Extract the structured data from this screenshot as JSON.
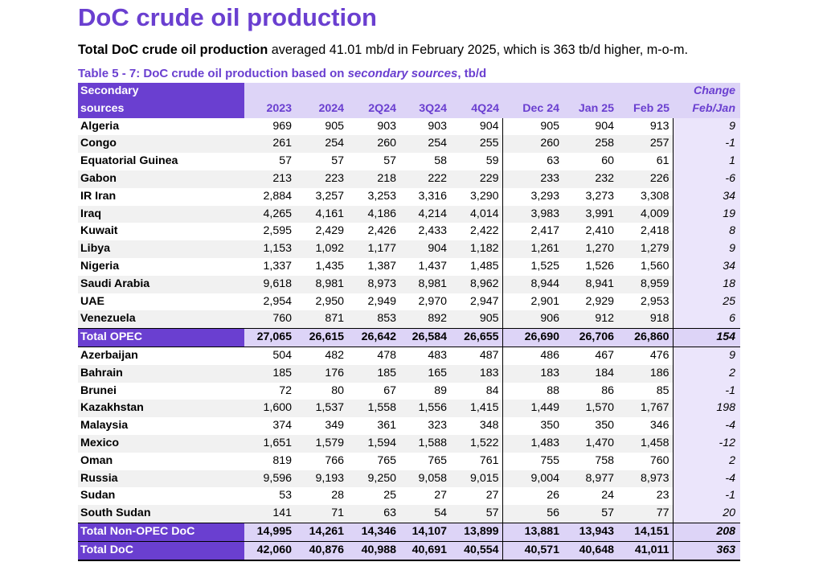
{
  "title": "DoC crude oil production",
  "subtitle": {
    "bold": "Total DoC crude oil production",
    "rest": " averaged 41.01 mb/d in February 2025, which is 363 tb/d higher, m-o-m."
  },
  "caption": {
    "prefix": "Table 5 - 7: DoC crude oil production based on ",
    "italic": "secondary sources",
    "suffix": ", tb/d"
  },
  "header": {
    "name_line1": "Secondary",
    "name_line2": "sources",
    "change_line1": "Change",
    "change_line2": "Feb/Jan",
    "columns": [
      "2023",
      "2024",
      "2Q24",
      "3Q24",
      "4Q24",
      "Dec 24",
      "Jan 25",
      "Feb 25"
    ]
  },
  "rows": [
    {
      "name": "Algeria",
      "values": [
        "969",
        "905",
        "903",
        "903",
        "904",
        "905",
        "904",
        "913"
      ],
      "change": "9"
    },
    {
      "name": "Congo",
      "values": [
        "261",
        "254",
        "260",
        "254",
        "255",
        "260",
        "258",
        "257"
      ],
      "change": "-1"
    },
    {
      "name": "Equatorial Guinea",
      "values": [
        "57",
        "57",
        "57",
        "58",
        "59",
        "63",
        "60",
        "61"
      ],
      "change": "1"
    },
    {
      "name": "Gabon",
      "values": [
        "213",
        "223",
        "218",
        "222",
        "229",
        "233",
        "232",
        "226"
      ],
      "change": "-6"
    },
    {
      "name": "IR Iran",
      "values": [
        "2,884",
        "3,257",
        "3,253",
        "3,316",
        "3,290",
        "3,293",
        "3,273",
        "3,308"
      ],
      "change": "34"
    },
    {
      "name": "Iraq",
      "values": [
        "4,265",
        "4,161",
        "4,186",
        "4,214",
        "4,014",
        "3,983",
        "3,991",
        "4,009"
      ],
      "change": "19"
    },
    {
      "name": "Kuwait",
      "values": [
        "2,595",
        "2,429",
        "2,426",
        "2,433",
        "2,422",
        "2,417",
        "2,410",
        "2,418"
      ],
      "change": "8"
    },
    {
      "name": "Libya",
      "values": [
        "1,153",
        "1,092",
        "1,177",
        "904",
        "1,182",
        "1,261",
        "1,270",
        "1,279"
      ],
      "change": "9"
    },
    {
      "name": "Nigeria",
      "values": [
        "1,337",
        "1,435",
        "1,387",
        "1,437",
        "1,485",
        "1,525",
        "1,526",
        "1,560"
      ],
      "change": "34"
    },
    {
      "name": "Saudi Arabia",
      "values": [
        "9,618",
        "8,981",
        "8,973",
        "8,981",
        "8,962",
        "8,944",
        "8,941",
        "8,959"
      ],
      "change": "18"
    },
    {
      "name": "UAE",
      "values": [
        "2,954",
        "2,950",
        "2,949",
        "2,970",
        "2,947",
        "2,901",
        "2,929",
        "2,953"
      ],
      "change": "25"
    },
    {
      "name": "Venezuela",
      "values": [
        "760",
        "871",
        "853",
        "892",
        "905",
        "906",
        "912",
        "918"
      ],
      "change": "6"
    },
    {
      "name": "Total  OPEC",
      "total": true,
      "values": [
        "27,065",
        "26,615",
        "26,642",
        "26,584",
        "26,655",
        "26,690",
        "26,706",
        "26,860"
      ],
      "change": "154"
    },
    {
      "name": "Azerbaijan",
      "values": [
        "504",
        "482",
        "478",
        "483",
        "487",
        "486",
        "467",
        "476"
      ],
      "change": "9"
    },
    {
      "name": "Bahrain",
      "values": [
        "185",
        "176",
        "185",
        "165",
        "183",
        "183",
        "184",
        "186"
      ],
      "change": "2"
    },
    {
      "name": "Brunei",
      "values": [
        "72",
        "80",
        "67",
        "89",
        "84",
        "88",
        "86",
        "85"
      ],
      "change": "-1"
    },
    {
      "name": "Kazakhstan",
      "values": [
        "1,600",
        "1,537",
        "1,558",
        "1,556",
        "1,415",
        "1,449",
        "1,570",
        "1,767"
      ],
      "change": "198"
    },
    {
      "name": "Malaysia",
      "values": [
        "374",
        "349",
        "361",
        "323",
        "348",
        "350",
        "350",
        "346"
      ],
      "change": "-4"
    },
    {
      "name": "Mexico",
      "values": [
        "1,651",
        "1,579",
        "1,594",
        "1,588",
        "1,522",
        "1,483",
        "1,470",
        "1,458"
      ],
      "change": "-12"
    },
    {
      "name": "Oman",
      "values": [
        "819",
        "766",
        "765",
        "765",
        "761",
        "755",
        "758",
        "760"
      ],
      "change": "2"
    },
    {
      "name": "Russia",
      "values": [
        "9,596",
        "9,193",
        "9,250",
        "9,058",
        "9,015",
        "9,004",
        "8,977",
        "8,973"
      ],
      "change": "-4"
    },
    {
      "name": "Sudan",
      "values": [
        "53",
        "28",
        "25",
        "27",
        "27",
        "26",
        "24",
        "23"
      ],
      "change": "-1"
    },
    {
      "name": "South Sudan",
      "values": [
        "141",
        "71",
        "63",
        "54",
        "57",
        "56",
        "57",
        "77"
      ],
      "change": "20"
    },
    {
      "name": "Total Non-OPEC DoC",
      "total": true,
      "values": [
        "14,995",
        "14,261",
        "14,346",
        "14,107",
        "13,899",
        "13,881",
        "13,943",
        "14,151"
      ],
      "change": "208"
    },
    {
      "name": "Total DoC",
      "total": true,
      "last": true,
      "values": [
        "42,060",
        "40,876",
        "40,988",
        "40,691",
        "40,554",
        "40,571",
        "40,648",
        "41,011"
      ],
      "change": "363"
    }
  ]
}
